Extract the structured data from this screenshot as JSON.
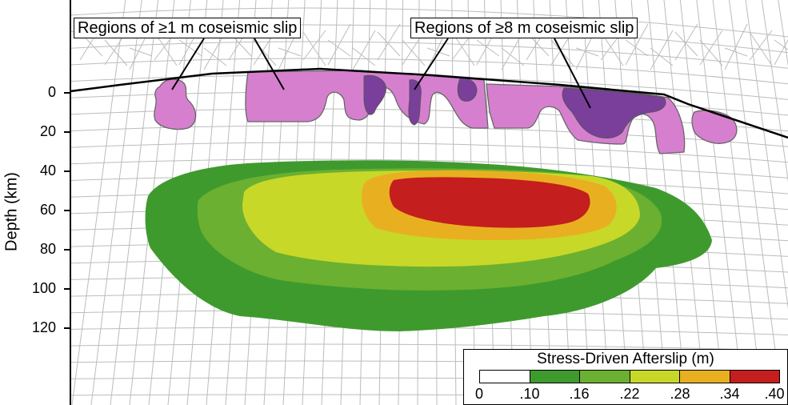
{
  "labels": {
    "slip_1m": "Regions of ≥1 m coseismic slip",
    "slip_8m": "Regions of ≥8 m coseismic slip"
  },
  "y_axis": {
    "label": "Depth (km)",
    "ticks": [
      "0",
      "20",
      "40",
      "60",
      "80",
      "100",
      "120"
    ]
  },
  "legend": {
    "title": "Stress-Driven Afterslip (m)",
    "ticks": [
      "0",
      ".10",
      ".16",
      ".22",
      ".28",
      ".34",
      ".40"
    ],
    "colors": [
      "#ffffff",
      "#3f9a2e",
      "#6bb030",
      "#c8d828",
      "#e8b020",
      "#c41e1e"
    ]
  },
  "colors": {
    "grid": "#bcbcbc",
    "coseismic_1m": "#d67fcf",
    "coseismic_8m": "#7a3f9a",
    "afterslip_green": "#3f9a2e",
    "afterslip_lightgreen": "#6bb030",
    "afterslip_yellow": "#c8d828",
    "afterslip_orange": "#e8b020",
    "afterslip_red": "#c41e1e"
  }
}
